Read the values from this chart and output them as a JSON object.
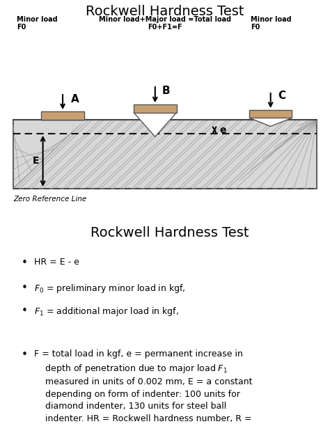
{
  "title1": "Rockwell Hardness Test",
  "title2": "Rockwell Hardness Test",
  "bg_color": "#ffffff",
  "indenter_fill": "#c8a070",
  "indenter_edge": "#555555",
  "material_fill": "#d8d8d8",
  "material_edge": "#444444",
  "label_A": "A",
  "label_B": "B",
  "label_C": "C",
  "label_E": "E",
  "label_e": "e",
  "minor_load_text1": "Minor load\nF0",
  "minor_load_text2": "Minor load\nF0",
  "center_load_text": "Minor load+Major load =Total load\nF0+F1=F",
  "zero_ref_text": "Zero Reference Line",
  "fig_w": 4.74,
  "fig_h": 6.32,
  "dpi": 100
}
